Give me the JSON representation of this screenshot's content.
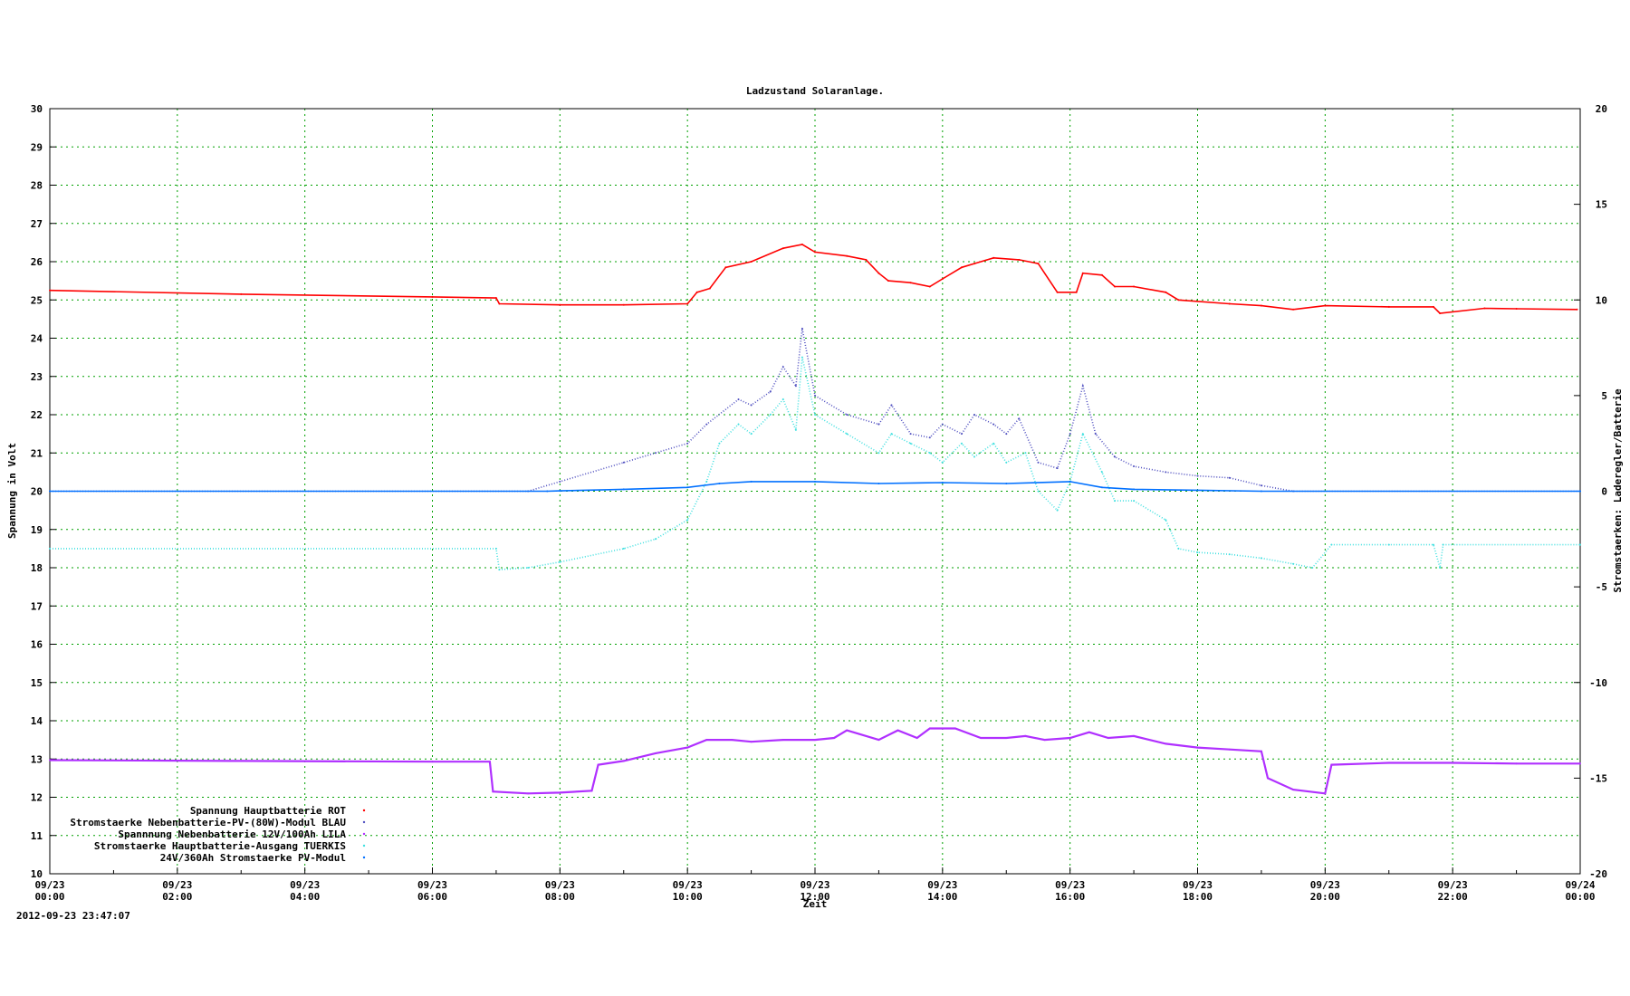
{
  "chart_data": {
    "type": "line",
    "title": "Ladzustand Solaranlage.",
    "xlabel": "Zeit",
    "ylabel": "Spannung in Volt",
    "y2label": "Stromstaerken: Laderegler/Batterie",
    "timestamp": "2012-09-23 23:47:07",
    "xlim": [
      0,
      24
    ],
    "ylim": [
      10,
      30
    ],
    "y2lim": [
      -20,
      20
    ],
    "grid": true,
    "legend_position": "bottom-left",
    "x_ticks": [
      {
        "date": "09/23",
        "time": "00:00"
      },
      {
        "date": "09/23",
        "time": "02:00"
      },
      {
        "date": "09/23",
        "time": "04:00"
      },
      {
        "date": "09/23",
        "time": "06:00"
      },
      {
        "date": "09/23",
        "time": "08:00"
      },
      {
        "date": "09/23",
        "time": "10:00"
      },
      {
        "date": "09/23",
        "time": "12:00"
      },
      {
        "date": "09/23",
        "time": "14:00"
      },
      {
        "date": "09/23",
        "time": "16:00"
      },
      {
        "date": "09/23",
        "time": "18:00"
      },
      {
        "date": "09/23",
        "time": "20:00"
      },
      {
        "date": "09/23",
        "time": "22:00"
      },
      {
        "date": "09/24",
        "time": "00:00"
      }
    ],
    "y_ticks": [
      "10",
      "11",
      "12",
      "13",
      "14",
      "15",
      "16",
      "17",
      "18",
      "19",
      "20",
      "21",
      "22",
      "23",
      "24",
      "25",
      "26",
      "27",
      "28",
      "29",
      "30"
    ],
    "y2_ticks": [
      "-20",
      "-15",
      "-10",
      "-5",
      "0",
      "5",
      "10",
      "15",
      "20"
    ],
    "series": [
      {
        "name": "Spannung Hauptbatterie ROT",
        "axis": "y",
        "color": "#ff0000",
        "points": [
          [
            0,
            25.25
          ],
          [
            3,
            25.15
          ],
          [
            6,
            25.08
          ],
          [
            7,
            25.05
          ],
          [
            7.05,
            24.9
          ],
          [
            8,
            24.87
          ],
          [
            9,
            24.87
          ],
          [
            10,
            24.9
          ],
          [
            10.15,
            25.2
          ],
          [
            10.35,
            25.3
          ],
          [
            10.6,
            25.85
          ],
          [
            11,
            26.0
          ],
          [
            11.5,
            26.35
          ],
          [
            11.8,
            26.45
          ],
          [
            12,
            26.25
          ],
          [
            12.5,
            26.15
          ],
          [
            12.8,
            26.05
          ],
          [
            13,
            25.7
          ],
          [
            13.15,
            25.5
          ],
          [
            13.5,
            25.45
          ],
          [
            13.8,
            25.35
          ],
          [
            14,
            25.55
          ],
          [
            14.3,
            25.85
          ],
          [
            14.5,
            25.95
          ],
          [
            14.8,
            26.1
          ],
          [
            15.2,
            26.05
          ],
          [
            15.5,
            25.95
          ],
          [
            15.8,
            25.2
          ],
          [
            16.1,
            25.2
          ],
          [
            16.2,
            25.7
          ],
          [
            16.5,
            25.65
          ],
          [
            16.7,
            25.35
          ],
          [
            17,
            25.35
          ],
          [
            17.5,
            25.2
          ],
          [
            17.7,
            25.0
          ],
          [
            18.5,
            24.9
          ],
          [
            19,
            24.85
          ],
          [
            19.5,
            24.75
          ],
          [
            20,
            24.85
          ],
          [
            21,
            24.82
          ],
          [
            21.7,
            24.82
          ],
          [
            21.8,
            24.65
          ],
          [
            22.5,
            24.78
          ],
          [
            23,
            24.77
          ],
          [
            23.95,
            24.75
          ]
        ]
      },
      {
        "name": "Stromstaerke Nebenbatterie-PV-(80W)-Modul BLAU",
        "axis": "y2",
        "color": "#5050c0",
        "points": [
          [
            0,
            0
          ],
          [
            7.5,
            0
          ],
          [
            8,
            0.5
          ],
          [
            9,
            1.5
          ],
          [
            9.5,
            2
          ],
          [
            10,
            2.5
          ],
          [
            10.3,
            3.5
          ],
          [
            10.8,
            4.8
          ],
          [
            11,
            4.5
          ],
          [
            11.3,
            5.2
          ],
          [
            11.5,
            6.5
          ],
          [
            11.7,
            5.5
          ],
          [
            11.8,
            8.5
          ],
          [
            12,
            5
          ],
          [
            12.5,
            4
          ],
          [
            13,
            3.5
          ],
          [
            13.2,
            4.5
          ],
          [
            13.5,
            3
          ],
          [
            13.8,
            2.8
          ],
          [
            14,
            3.5
          ],
          [
            14.3,
            3
          ],
          [
            14.5,
            4
          ],
          [
            14.8,
            3.5
          ],
          [
            15,
            3
          ],
          [
            15.2,
            3.8
          ],
          [
            15.5,
            1.5
          ],
          [
            15.8,
            1.2
          ],
          [
            16,
            3
          ],
          [
            16.2,
            5.5
          ],
          [
            16.4,
            3
          ],
          [
            16.7,
            1.8
          ],
          [
            17,
            1.3
          ],
          [
            17.5,
            1
          ],
          [
            18,
            0.8
          ],
          [
            18.5,
            0.7
          ],
          [
            19,
            0.3
          ],
          [
            19.5,
            0
          ],
          [
            24,
            0
          ]
        ]
      },
      {
        "name": "Spannnung Nebenbatterie 12V/100Ah LILA",
        "axis": "y",
        "color": "#b030ff",
        "points": [
          [
            0,
            12.97
          ],
          [
            3,
            12.95
          ],
          [
            6,
            12.93
          ],
          [
            6.9,
            12.93
          ],
          [
            6.95,
            12.15
          ],
          [
            7.5,
            12.1
          ],
          [
            8,
            12.12
          ],
          [
            8.5,
            12.17
          ],
          [
            8.6,
            12.85
          ],
          [
            9,
            12.95
          ],
          [
            9.5,
            13.15
          ],
          [
            10,
            13.3
          ],
          [
            10.3,
            13.5
          ],
          [
            10.7,
            13.5
          ],
          [
            11,
            13.45
          ],
          [
            11.5,
            13.5
          ],
          [
            12,
            13.5
          ],
          [
            12.3,
            13.55
          ],
          [
            12.5,
            13.75
          ],
          [
            13,
            13.5
          ],
          [
            13.3,
            13.75
          ],
          [
            13.6,
            13.55
          ],
          [
            13.8,
            13.8
          ],
          [
            14.2,
            13.8
          ],
          [
            14.6,
            13.55
          ],
          [
            15,
            13.55
          ],
          [
            15.3,
            13.6
          ],
          [
            15.6,
            13.5
          ],
          [
            16,
            13.55
          ],
          [
            16.3,
            13.7
          ],
          [
            16.6,
            13.55
          ],
          [
            17,
            13.6
          ],
          [
            17.5,
            13.4
          ],
          [
            18,
            13.3
          ],
          [
            18.5,
            13.25
          ],
          [
            19,
            13.2
          ],
          [
            19.1,
            12.5
          ],
          [
            19.5,
            12.2
          ],
          [
            20,
            12.1
          ],
          [
            20.1,
            12.85
          ],
          [
            21,
            12.9
          ],
          [
            22,
            12.9
          ],
          [
            23,
            12.88
          ],
          [
            24,
            12.88
          ]
        ]
      },
      {
        "name": "Stromstaerke Hauptbatterie-Ausgang TUERKIS",
        "axis": "y2",
        "color": "#40e0e0",
        "points": [
          [
            0,
            -3
          ],
          [
            7,
            -3
          ],
          [
            7.05,
            -4.1
          ],
          [
            7.5,
            -4
          ],
          [
            8,
            -3.7
          ],
          [
            9,
            -3
          ],
          [
            9.5,
            -2.5
          ],
          [
            10,
            -1.5
          ],
          [
            10.3,
            0.5
          ],
          [
            10.5,
            2.5
          ],
          [
            10.8,
            3.5
          ],
          [
            11,
            3
          ],
          [
            11.3,
            4
          ],
          [
            11.5,
            4.8
          ],
          [
            11.7,
            3.2
          ],
          [
            11.8,
            7
          ],
          [
            12,
            4
          ],
          [
            12.5,
            3
          ],
          [
            13,
            2
          ],
          [
            13.2,
            3
          ],
          [
            13.5,
            2.5
          ],
          [
            13.8,
            2
          ],
          [
            14,
            1.5
          ],
          [
            14.3,
            2.5
          ],
          [
            14.5,
            1.8
          ],
          [
            14.8,
            2.5
          ],
          [
            15,
            1.5
          ],
          [
            15.3,
            2
          ],
          [
            15.5,
            0
          ],
          [
            15.8,
            -1
          ],
          [
            16,
            0.5
          ],
          [
            16.2,
            3
          ],
          [
            16.5,
            1
          ],
          [
            16.7,
            -0.5
          ],
          [
            17,
            -0.5
          ],
          [
            17.5,
            -1.5
          ],
          [
            17.7,
            -3
          ],
          [
            18,
            -3.2
          ],
          [
            18.5,
            -3.3
          ],
          [
            19,
            -3.5
          ],
          [
            19.5,
            -3.8
          ],
          [
            19.8,
            -4
          ],
          [
            20.1,
            -2.8
          ],
          [
            21,
            -2.8
          ],
          [
            21.7,
            -2.8
          ],
          [
            21.8,
            -4
          ],
          [
            21.85,
            -2.8
          ],
          [
            24,
            -2.8
          ]
        ]
      },
      {
        "name": "24V/360Ah Stromstaerke PV-Modul",
        "axis": "y2",
        "color": "#0070ff",
        "points": [
          [
            0,
            0
          ],
          [
            7.8,
            0
          ],
          [
            8,
            0.02
          ],
          [
            9,
            0.1
          ],
          [
            10,
            0.2
          ],
          [
            10.5,
            0.4
          ],
          [
            11,
            0.5
          ],
          [
            12,
            0.5
          ],
          [
            13,
            0.4
          ],
          [
            14,
            0.45
          ],
          [
            15,
            0.4
          ],
          [
            16,
            0.5
          ],
          [
            16.5,
            0.2
          ],
          [
            17,
            0.1
          ],
          [
            18,
            0.05
          ],
          [
            19,
            0
          ],
          [
            24,
            0
          ]
        ]
      }
    ]
  }
}
